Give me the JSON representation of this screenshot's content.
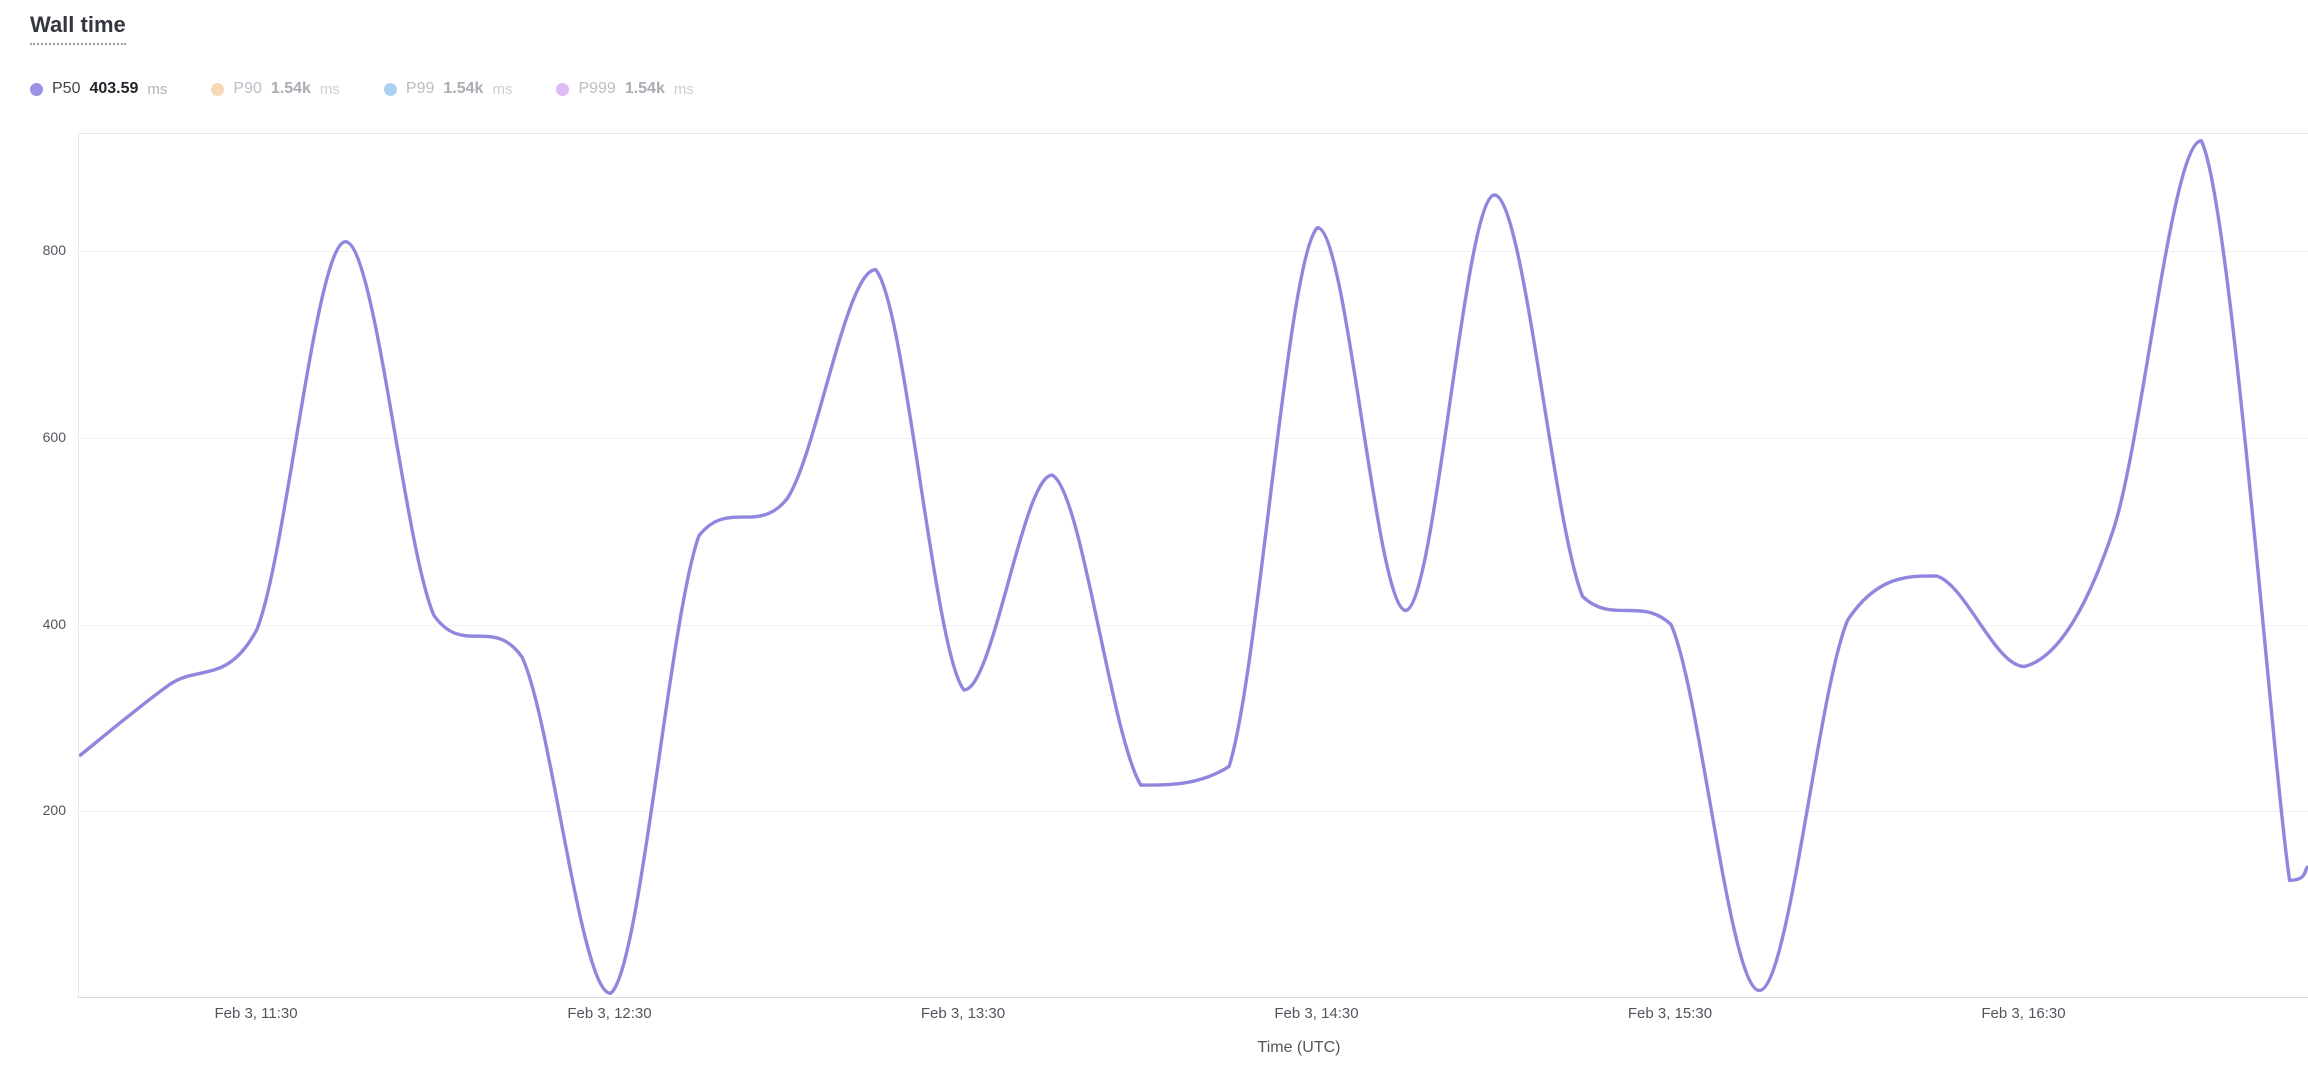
{
  "chart_data": {
    "type": "line",
    "title": "Wall time",
    "xlabel": "Time (UTC)",
    "unit": "ms",
    "background": "#ffffff",
    "grid": "horizontal-only",
    "legend_position": "top-left",
    "ylim": [
      0,
      925
    ],
    "y_ticks": [
      200,
      400,
      600,
      800
    ],
    "x_start": "11:00",
    "x_end": "17:18",
    "x_ticks": [
      {
        "time": "11:30",
        "label": "Feb 3, 11:30"
      },
      {
        "time": "12:30",
        "label": "Feb 3, 12:30"
      },
      {
        "time": "13:30",
        "label": "Feb 3, 13:30"
      },
      {
        "time": "14:30",
        "label": "Feb 3, 14:30"
      },
      {
        "time": "15:30",
        "label": "Feb 3, 15:30"
      },
      {
        "time": "16:30",
        "label": "Feb 3, 16:30"
      }
    ],
    "legend": [
      {
        "name": "P50",
        "value": "403.59",
        "unit": "ms",
        "color": "#9a92e4",
        "active": true
      },
      {
        "name": "P90",
        "value": "1.54k",
        "unit": "ms",
        "color": "#f7d9b5",
        "active": false
      },
      {
        "name": "P99",
        "value": "1.54k",
        "unit": "ms",
        "color": "#abd2f3",
        "active": false
      },
      {
        "name": "P999",
        "value": "1.54k",
        "unit": "ms",
        "color": "#debbf3",
        "active": false
      }
    ],
    "series": [
      {
        "name": "P50",
        "unit": "ms",
        "color": "#8f87dd",
        "x": [
          "11:00",
          "11:15",
          "11:30",
          "11:45",
          "12:00",
          "12:15",
          "12:30",
          "12:45",
          "13:00",
          "13:15",
          "13:30",
          "13:45",
          "14:00",
          "14:15",
          "14:30",
          "14:45",
          "15:00",
          "15:15",
          "15:30",
          "15:45",
          "16:00",
          "16:15",
          "16:30",
          "16:45",
          "17:00",
          "17:15",
          "17:18"
        ],
        "y": [
          260,
          335,
          395,
          810,
          410,
          365,
          5,
          495,
          535,
          780,
          330,
          560,
          228,
          248,
          825,
          415,
          860,
          430,
          400,
          8,
          405,
          452,
          355,
          500,
          918,
          126,
          140
        ]
      }
    ]
  }
}
